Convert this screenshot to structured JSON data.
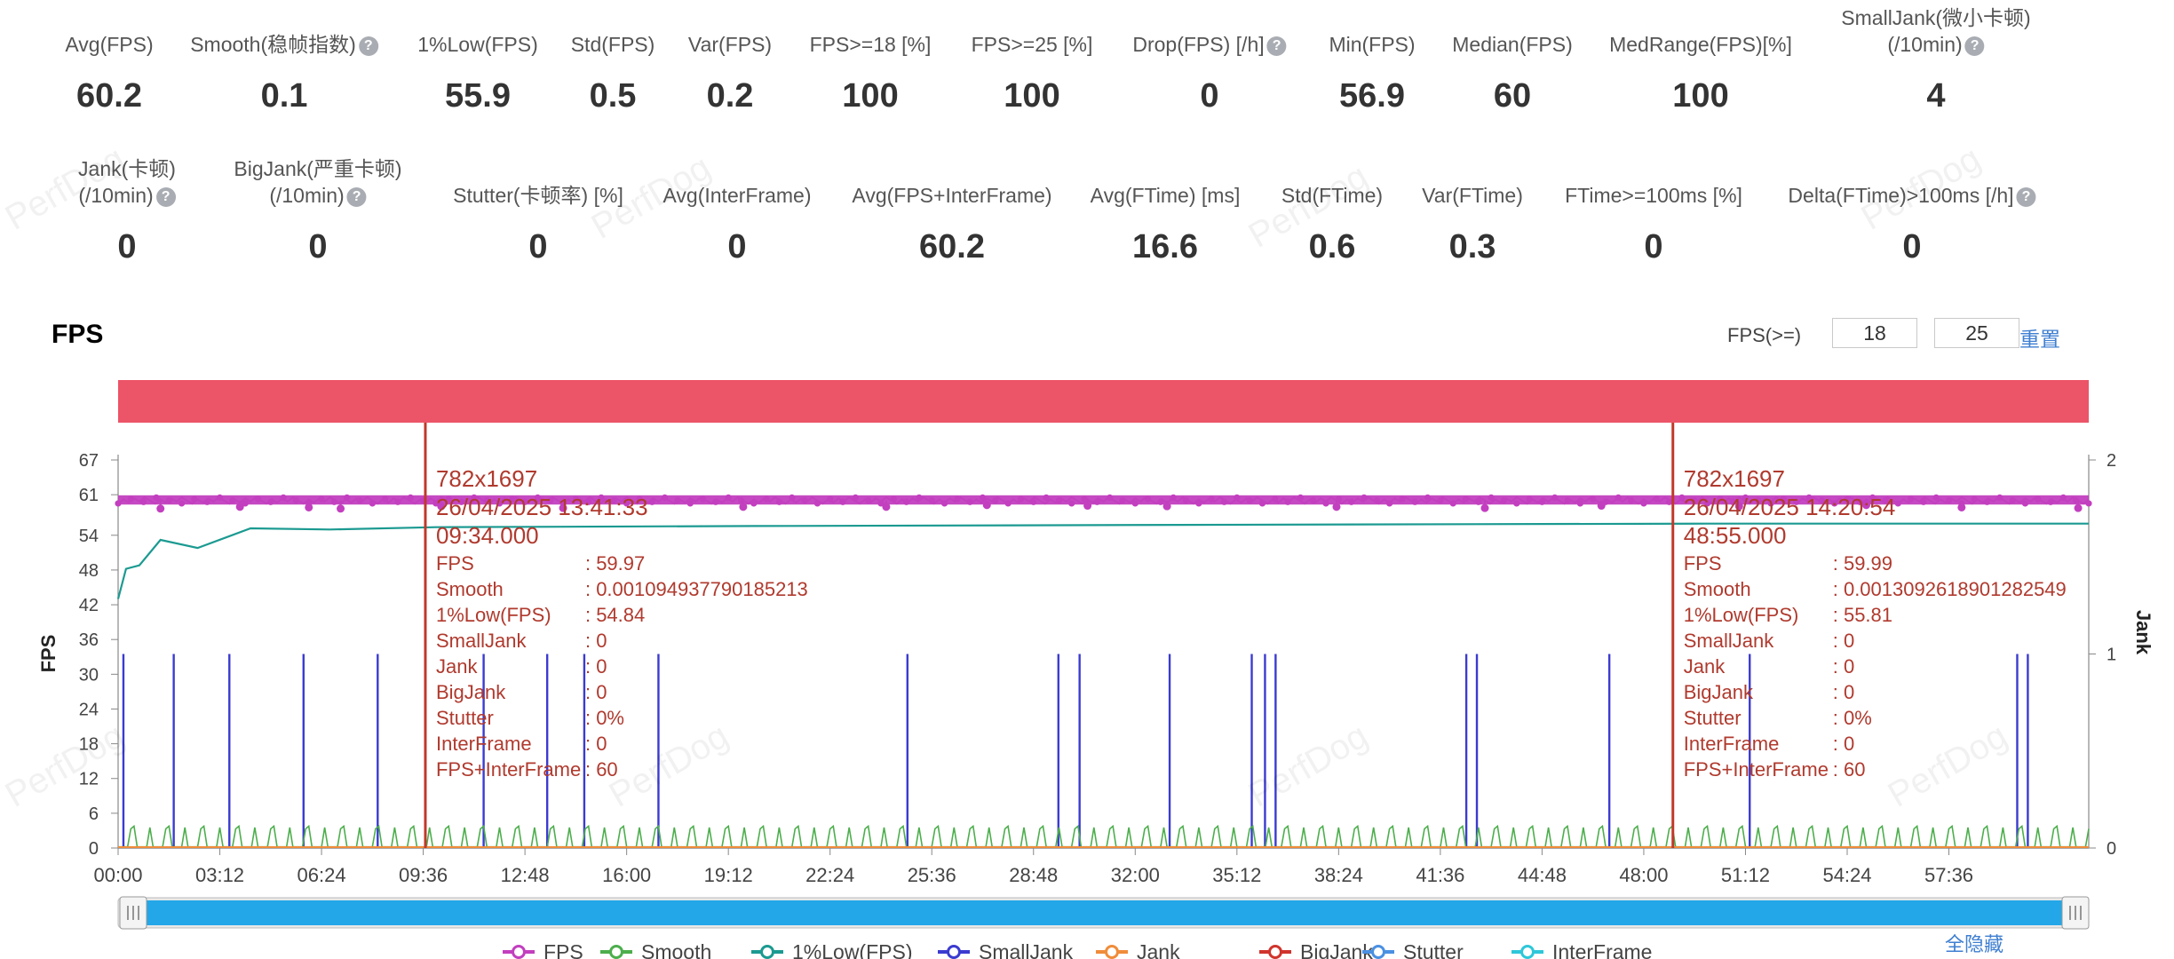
{
  "stats_row1": [
    {
      "label": "Avg(FPS)",
      "value": "60.2",
      "help": false
    },
    {
      "label": "Smooth(稳帧指数)",
      "value": "0.1",
      "help": true
    },
    {
      "label": "1%Low(FPS)",
      "value": "55.9",
      "help": false
    },
    {
      "label": "Std(FPS)",
      "value": "0.5",
      "help": false
    },
    {
      "label": "Var(FPS)",
      "value": "0.2",
      "help": false
    },
    {
      "label": "FPS>=18 [%]",
      "value": "100",
      "help": false
    },
    {
      "label": "FPS>=25 [%]",
      "value": "100",
      "help": false
    },
    {
      "label": "Drop(FPS) [/h]",
      "value": "0",
      "help": true
    },
    {
      "label": "Min(FPS)",
      "value": "56.9",
      "help": false
    },
    {
      "label": "Median(FPS)",
      "value": "60",
      "help": false
    },
    {
      "label": "MedRange(FPS)[%]",
      "value": "100",
      "help": false
    },
    {
      "label": "SmallJank(微小卡顿)",
      "label2": "(/10min)",
      "value": "4",
      "help": true
    }
  ],
  "stats_row2": [
    {
      "label": "Jank(卡顿)",
      "label2": "(/10min)",
      "value": "0",
      "help": true
    },
    {
      "label": "BigJank(严重卡顿)",
      "label2": "(/10min)",
      "value": "0",
      "help": true
    },
    {
      "label": "Stutter(卡顿率) [%]",
      "value": "0",
      "help": false
    },
    {
      "label": "Avg(InterFrame)",
      "value": "0",
      "help": false
    },
    {
      "label": "Avg(FPS+InterFrame)",
      "value": "60.2",
      "help": false
    },
    {
      "label": "Avg(FTime) [ms]",
      "value": "16.6",
      "help": false
    },
    {
      "label": "Std(FTime)",
      "value": "0.6",
      "help": false
    },
    {
      "label": "Var(FTime)",
      "value": "0.3",
      "help": false
    },
    {
      "label": "FTime>=100ms [%]",
      "value": "0",
      "help": false
    },
    {
      "label": "Delta(FTime)>100ms [/h]",
      "value": "0",
      "help": true
    }
  ],
  "watermark": "PerfDog",
  "chart_section": {
    "title": "FPS",
    "threshold_label": "FPS(>=)",
    "threshold_1": "18",
    "threshold_2": "25",
    "reset_label": "重置",
    "hide_all_label": "全隐藏"
  },
  "chart_data": {
    "type": "line",
    "ylabel_left": "FPS",
    "ylabel_right": "Jank",
    "y_left_ticks": [
      "0",
      "6",
      "12",
      "18",
      "24",
      "30",
      "36",
      "42",
      "48",
      "54",
      "61",
      "67"
    ],
    "y_right_ticks": [
      "0",
      "1",
      "2"
    ],
    "x_ticks": [
      "00:00",
      "03:12",
      "06:24",
      "09:36",
      "12:48",
      "16:00",
      "19:12",
      "22:24",
      "25:36",
      "28:48",
      "32:00",
      "35:12",
      "38:24",
      "41:36",
      "44:48",
      "48:00",
      "51:12",
      "54:24",
      "57:36"
    ],
    "x_range_seconds": [
      0,
      3720
    ],
    "series": [
      {
        "name": "FPS",
        "color": "#c23fbf",
        "typical_value": 60,
        "dips": [
          [
            80,
            58.6
          ],
          [
            230,
            58.9
          ],
          [
            360,
            58.8
          ],
          [
            420,
            58.6
          ],
          [
            610,
            59.0
          ],
          [
            840,
            58.7
          ],
          [
            1180,
            58.9
          ],
          [
            1450,
            58.9
          ],
          [
            1640,
            59.2
          ],
          [
            1830,
            59.1
          ],
          [
            1980,
            59.0
          ],
          [
            2300,
            58.9
          ],
          [
            2580,
            58.7
          ],
          [
            2800,
            59.1
          ],
          [
            3060,
            59.0
          ],
          [
            3300,
            59.2
          ],
          [
            3480,
            58.8
          ],
          [
            3700,
            58.7
          ]
        ]
      },
      {
        "name": "Smooth",
        "color": "#4cae4c",
        "typical_value": 0.5
      },
      {
        "name": "1%Low(FPS)",
        "color": "#1b9a91",
        "points": [
          [
            0,
            43
          ],
          [
            15,
            47
          ],
          [
            40,
            50
          ],
          [
            80,
            52
          ],
          [
            150,
            53
          ],
          [
            250,
            54
          ],
          [
            400,
            55
          ],
          [
            600,
            55.4
          ],
          [
            1200,
            55.6
          ],
          [
            2000,
            55.8
          ],
          [
            3000,
            56
          ],
          [
            3720,
            56
          ]
        ]
      },
      {
        "name": "SmallJank",
        "color": "#3b3bd0",
        "spikes_seconds": [
          10,
          105,
          210,
          350,
          490,
          690,
          810,
          880,
          1020,
          1490,
          1775,
          1815,
          1985,
          2140,
          2165,
          2185,
          2545,
          2565,
          2815,
          3080,
          3585,
          3605
        ]
      },
      {
        "name": "Jank",
        "color": "#f08c3a",
        "typical_value": 0
      },
      {
        "name": "BigJank",
        "color": "#d0342c",
        "typical_value": 0
      },
      {
        "name": "Stutter",
        "color": "#4a90e2",
        "typical_value": 0
      },
      {
        "name": "InterFrame",
        "color": "#2ec7d9",
        "typical_value": 0
      }
    ],
    "markers": [
      {
        "time_seconds": 580,
        "lines": [
          "782x1697",
          "26/04/2025 13:41:33",
          "09:34.000"
        ],
        "rows": [
          [
            "FPS",
            ": 59.97"
          ],
          [
            "Smooth",
            ": 0.001094937790185213"
          ],
          [
            "1%Low(FPS)",
            ": 54.84"
          ],
          [
            "SmallJank",
            ": 0"
          ],
          [
            "Jank",
            ": 0"
          ],
          [
            "BigJank",
            ": 0"
          ],
          [
            "Stutter",
            ": 0%"
          ],
          [
            "InterFrame",
            ": 0"
          ],
          [
            "FPS+InterFrame",
            ": 60"
          ]
        ]
      },
      {
        "time_seconds": 2935,
        "lines": [
          "782x1697",
          "26/04/2025 14:20:54",
          "48:55.000"
        ],
        "rows": [
          [
            "FPS",
            ": 59.99"
          ],
          [
            "Smooth",
            ": 0.0013092618901282549"
          ],
          [
            "1%Low(FPS)",
            ": 55.81"
          ],
          [
            "SmallJank",
            ": 0"
          ],
          [
            "Jank",
            ": 0"
          ],
          [
            "BigJank",
            ": 0"
          ],
          [
            "Stutter",
            ": 0%"
          ],
          [
            "InterFrame",
            ": 0"
          ],
          [
            "FPS+InterFrame",
            ": 60"
          ]
        ]
      }
    ],
    "legend": [
      "FPS",
      "Smooth",
      "1%Low(FPS)",
      "SmallJank",
      "Jank",
      "BigJank",
      "Stutter",
      "InterFrame"
    ],
    "colors": {
      "top_band": "#ec5468",
      "marker_line": "#c0392b",
      "marker_text": "#b03a2e",
      "scrollbar": "#23a7e8"
    }
  }
}
